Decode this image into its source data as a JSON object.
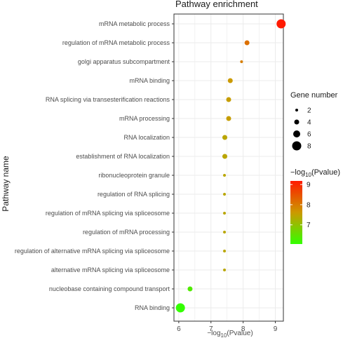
{
  "chart_data": {
    "type": "scatter",
    "title": "Pathway enrichment",
    "ylabel": "Pathway name",
    "xlabel": {
      "prefix": "−log",
      "sub": "10",
      "suffix": "(Pvalue)"
    },
    "xlim": [
      5.85,
      9.25
    ],
    "x_ticks": [
      6,
      7,
      8,
      9
    ],
    "grid": true,
    "points": [
      {
        "pathway": "mRNA metabolic process",
        "x": 9.18,
        "gene_number": 8,
        "log10p": 9.18
      },
      {
        "pathway": "regulation of mRNA metabolic process",
        "x": 8.12,
        "gene_number": 4,
        "log10p": 8.12
      },
      {
        "pathway": "golgi apparatus subcompartment",
        "x": 7.95,
        "gene_number": 2,
        "log10p": 7.95
      },
      {
        "pathway": "mRNA binding",
        "x": 7.6,
        "gene_number": 4,
        "log10p": 7.6
      },
      {
        "pathway": "RNA splicing via transesterification reactions",
        "x": 7.55,
        "gene_number": 4,
        "log10p": 7.55
      },
      {
        "pathway": "mRNA processing",
        "x": 7.55,
        "gene_number": 4,
        "log10p": 7.55
      },
      {
        "pathway": "RNA localization",
        "x": 7.43,
        "gene_number": 4,
        "log10p": 7.43
      },
      {
        "pathway": "establishment of RNA localization",
        "x": 7.43,
        "gene_number": 4,
        "log10p": 7.43
      },
      {
        "pathway": "ribonucleoprotein granule",
        "x": 7.42,
        "gene_number": 2,
        "log10p": 7.42
      },
      {
        "pathway": "regulation of RNA splicing",
        "x": 7.42,
        "gene_number": 2,
        "log10p": 7.42
      },
      {
        "pathway": "regulation of mRNA splicing via spliceosome",
        "x": 7.42,
        "gene_number": 2,
        "log10p": 7.42
      },
      {
        "pathway": "regulation of mRNA processing",
        "x": 7.42,
        "gene_number": 2,
        "log10p": 7.42
      },
      {
        "pathway": "regulation of alternative mRNA splicing via spliceosome",
        "x": 7.42,
        "gene_number": 2,
        "log10p": 7.42
      },
      {
        "pathway": "alternative mRNA splicing via spliceosome",
        "x": 7.42,
        "gene_number": 2,
        "log10p": 7.42
      },
      {
        "pathway": "nucleobase containing compound transport",
        "x": 6.35,
        "gene_number": 4,
        "log10p": 6.35
      },
      {
        "pathway": "RNA binding",
        "x": 6.05,
        "gene_number": 8,
        "log10p": 6.05
      }
    ],
    "size_legend": {
      "title": "Gene number",
      "values": [
        2,
        4,
        6,
        8
      ]
    },
    "color_legend": {
      "title": {
        "prefix": "−log",
        "sub": "10",
        "suffix": "(Pvalue)"
      },
      "ticks": [
        7,
        8,
        9
      ],
      "range": [
        6.05,
        9.18
      ],
      "low_color": "#33ff00",
      "mid_color": "#cc9900",
      "high_color": "#ff1a00"
    },
    "panel_background": "#ffffff",
    "grid_color": "#ebebeb",
    "legend_position": "right"
  }
}
